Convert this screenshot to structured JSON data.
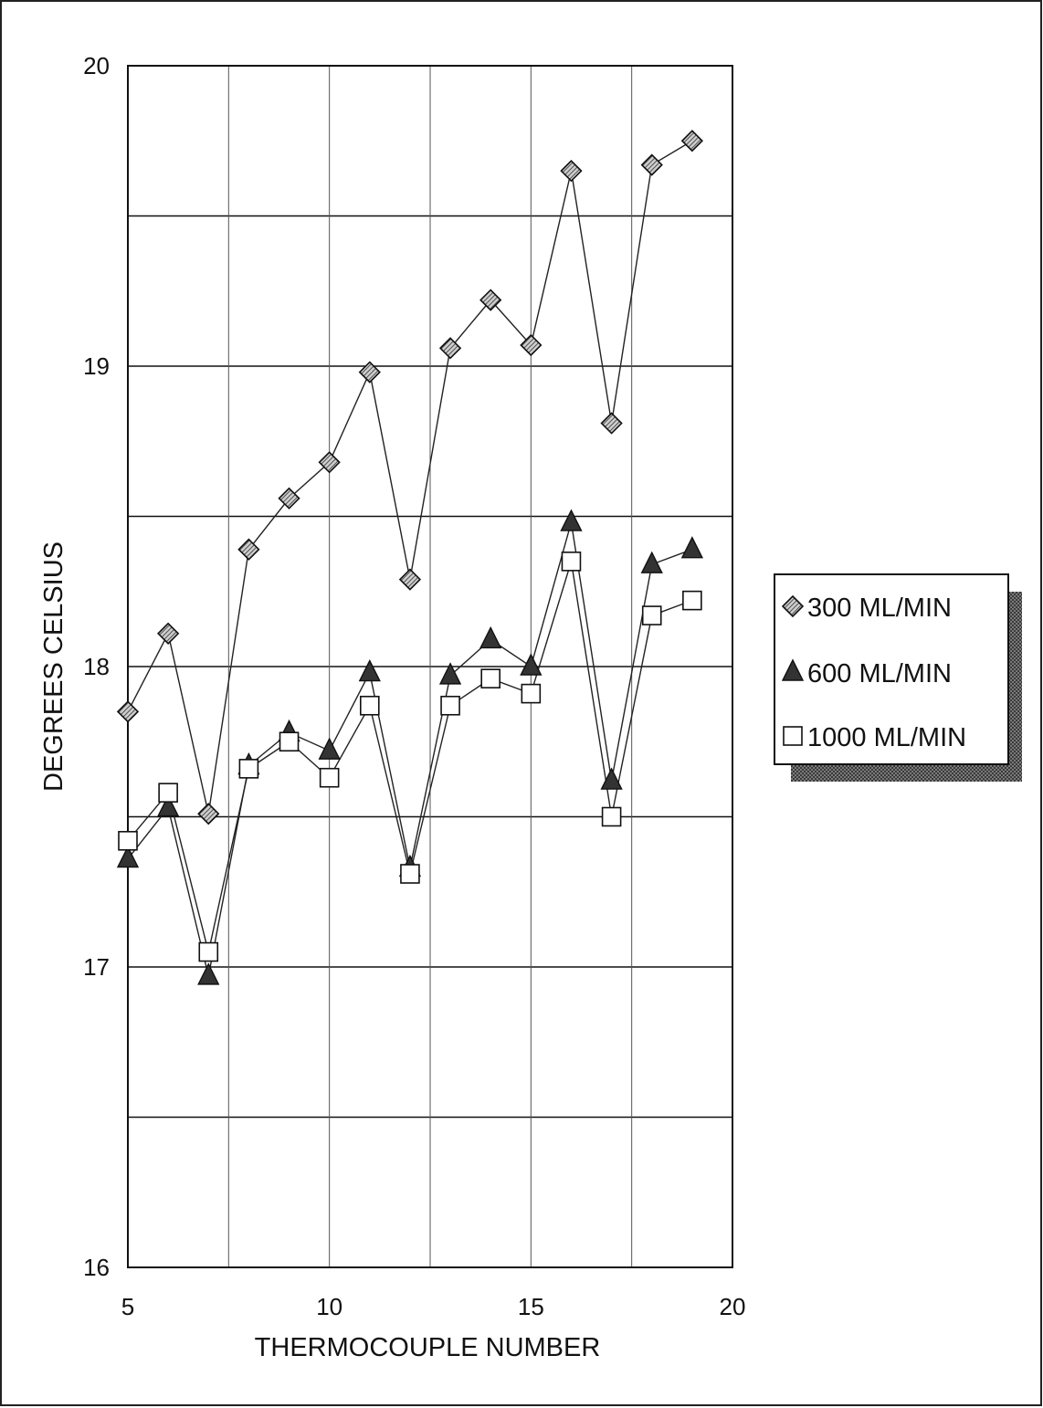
{
  "chart_data": {
    "type": "line",
    "xlabel": "THERMOCOUPLE NUMBER",
    "ylabel": "DEGREES CELSIUS",
    "xlim": [
      5,
      20
    ],
    "ylim": [
      16,
      20
    ],
    "xticks": [
      5,
      10,
      15,
      20
    ],
    "yticks": [
      16,
      17,
      18,
      19,
      20
    ],
    "vertical_gridlines_at": [
      5,
      7.5,
      10,
      12.5,
      15,
      17.5,
      20
    ],
    "horizontal_gridlines_at": [
      16,
      16.5,
      17,
      17.5,
      18,
      18.5,
      19,
      19.5,
      20
    ],
    "grid": true,
    "legend_position": "right",
    "x": [
      5,
      6,
      7,
      8,
      9,
      10,
      11,
      12,
      13,
      14,
      15,
      16,
      17,
      18,
      19
    ],
    "series": [
      {
        "name": "300 ML/MIN",
        "marker": "diamond",
        "values": [
          17.85,
          18.11,
          17.51,
          18.39,
          18.56,
          18.68,
          18.98,
          18.29,
          19.06,
          19.22,
          19.07,
          19.65,
          18.81,
          19.67,
          19.75
        ]
      },
      {
        "name": "600 ML/MIN",
        "marker": "triangle",
        "values": [
          17.36,
          17.53,
          16.97,
          17.67,
          17.78,
          17.72,
          17.98,
          17.33,
          17.97,
          18.09,
          18.0,
          18.48,
          17.62,
          18.34,
          18.39
        ]
      },
      {
        "name": "1000 ML/MIN",
        "marker": "square",
        "values": [
          17.42,
          17.58,
          17.05,
          17.66,
          17.75,
          17.63,
          17.87,
          17.31,
          17.87,
          17.96,
          17.91,
          18.35,
          17.5,
          18.17,
          18.22
        ]
      }
    ]
  }
}
